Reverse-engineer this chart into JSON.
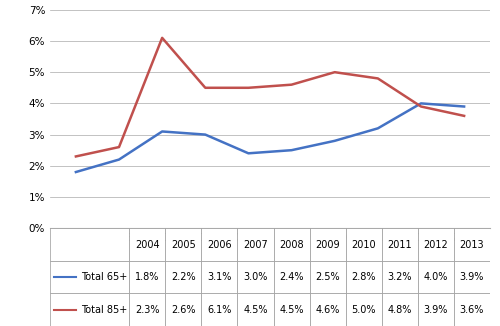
{
  "years": [
    2004,
    2005,
    2006,
    2007,
    2008,
    2009,
    2010,
    2011,
    2012,
    2013
  ],
  "total_65_plus": [
    1.8,
    2.2,
    3.1,
    3.0,
    2.4,
    2.5,
    2.8,
    3.2,
    4.0,
    3.9
  ],
  "total_85_plus": [
    2.3,
    2.6,
    6.1,
    4.5,
    4.5,
    4.6,
    5.0,
    4.8,
    3.9,
    3.6
  ],
  "color_65": "#4472C4",
  "color_85": "#C0504D",
  "ytick_labels": [
    "0%",
    "1%",
    "2%",
    "3%",
    "4%",
    "5%",
    "6%",
    "7%"
  ],
  "legend_65": "Total 65+",
  "legend_85": "Total 85+",
  "table_65_labels": [
    "1.8%",
    "2.2%",
    "3.1%",
    "3.0%",
    "2.4%",
    "2.5%",
    "2.8%",
    "3.2%",
    "4.0%",
    "3.9%"
  ],
  "table_85_labels": [
    "2.3%",
    "2.6%",
    "6.1%",
    "4.5%",
    "4.5%",
    "4.6%",
    "5.0%",
    "4.8%",
    "3.9%",
    "3.6%"
  ],
  "bg_color": "#ffffff",
  "grid_color": "#aaaaaa",
  "spine_color": "#aaaaaa"
}
